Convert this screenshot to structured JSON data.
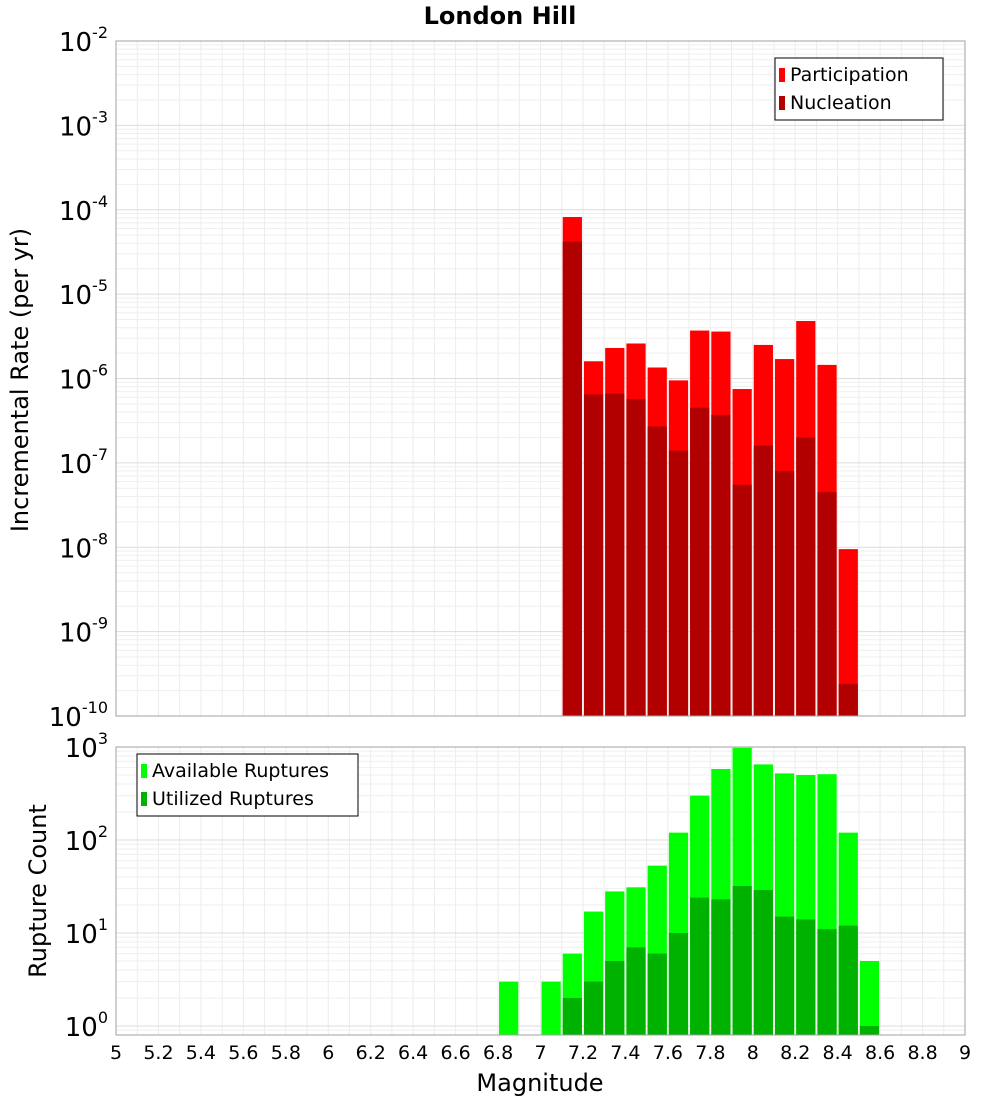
{
  "chart_data": [
    {
      "type": "bar",
      "title": "London Hill",
      "ylabel": "Incremental Rate (per yr)",
      "yscale": "log",
      "ylim": [
        1e-10,
        0.01
      ],
      "xlim": [
        5,
        9
      ],
      "bin_width": 0.1,
      "grid": true,
      "legend_position": "top-right",
      "ytick_labels": [
        {
          "base": "10",
          "exp": "-10",
          "value": 1e-10
        },
        {
          "base": "10",
          "exp": "-9",
          "value": 1e-09
        },
        {
          "base": "10",
          "exp": "-8",
          "value": 1e-08
        },
        {
          "base": "10",
          "exp": "-7",
          "value": 1e-07
        },
        {
          "base": "10",
          "exp": "-6",
          "value": 1e-06
        },
        {
          "base": "10",
          "exp": "-5",
          "value": 1e-05
        },
        {
          "base": "10",
          "exp": "-4",
          "value": 0.0001
        },
        {
          "base": "10",
          "exp": "-3",
          "value": 0.001
        },
        {
          "base": "10",
          "exp": "-2",
          "value": 0.01
        }
      ],
      "x": [
        7.15,
        7.25,
        7.35,
        7.45,
        7.55,
        7.65,
        7.75,
        7.85,
        7.95,
        8.05,
        8.15,
        8.25,
        8.35,
        8.45
      ],
      "series": [
        {
          "name": "Participation",
          "color": "#ff0000",
          "values": [
            8.2e-05,
            1.6e-06,
            2.3e-06,
            2.6e-06,
            1.35e-06,
            9.5e-07,
            3.7e-06,
            3.6e-06,
            7.5e-07,
            2.5e-06,
            1.7e-06,
            4.8e-06,
            1.45e-06,
            9.5e-09
          ]
        },
        {
          "name": "Nucleation",
          "color": "#b20000",
          "values": [
            4.2e-05,
            6.5e-07,
            6.6e-07,
            5.7e-07,
            2.7e-07,
            1.4e-07,
            4.5e-07,
            3.7e-07,
            5.5e-08,
            1.6e-07,
            8e-08,
            2e-07,
            4.5e-08,
            2.4e-10
          ]
        }
      ]
    },
    {
      "type": "bar",
      "ylabel": "Rupture Count",
      "xlabel": "Magnitude",
      "yscale": "log",
      "ylim": [
        0.8,
        1000
      ],
      "xlim": [
        5,
        9
      ],
      "bin_width": 0.1,
      "grid": true,
      "legend_position": "top-left",
      "ytick_labels": [
        {
          "base": "10",
          "exp": "0",
          "value": 1
        },
        {
          "base": "10",
          "exp": "1",
          "value": 10
        },
        {
          "base": "10",
          "exp": "2",
          "value": 100
        },
        {
          "base": "10",
          "exp": "3",
          "value": 1000
        }
      ],
      "xtick_labels": [
        "5",
        "5.2",
        "5.4",
        "5.6",
        "5.8",
        "6",
        "6.2",
        "6.4",
        "6.6",
        "6.8",
        "7",
        "7.2",
        "7.4",
        "7.6",
        "7.8",
        "8",
        "8.2",
        "8.4",
        "8.6",
        "8.8",
        "9"
      ],
      "xtick_values": [
        5,
        5.2,
        5.4,
        5.6,
        5.8,
        6,
        6.2,
        6.4,
        6.6,
        6.8,
        7,
        7.2,
        7.4,
        7.6,
        7.8,
        8,
        8.2,
        8.4,
        8.6,
        8.8,
        9
      ],
      "x": [
        6.85,
        7.05,
        7.15,
        7.25,
        7.35,
        7.45,
        7.55,
        7.65,
        7.75,
        7.85,
        7.95,
        8.05,
        8.15,
        8.25,
        8.35,
        8.45,
        8.55
      ],
      "series": [
        {
          "name": "Available Ruptures",
          "color": "#00ff00",
          "values": [
            3,
            3,
            6,
            17,
            28,
            31,
            53,
            120,
            300,
            580,
            980,
            650,
            520,
            500,
            510,
            120,
            5
          ]
        },
        {
          "name": "Utilized Ruptures",
          "color": "#00b200",
          "values": [
            null,
            null,
            2,
            3,
            5,
            7,
            6,
            10,
            24,
            23,
            32,
            29,
            15,
            14,
            11,
            12,
            1
          ]
        }
      ]
    }
  ]
}
